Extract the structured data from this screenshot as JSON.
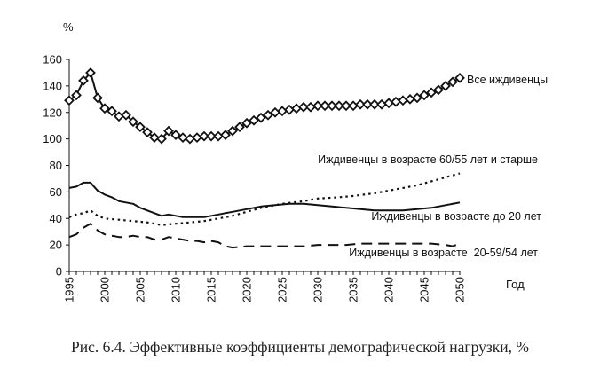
{
  "caption": "Рис. 6.4. Эффективные коэффициенты демографической нагрузки, %",
  "chart_data": {
    "type": "line",
    "ylabel": "%",
    "xlabel": "Год",
    "ylim": [
      0,
      160
    ],
    "yticks": [
      0,
      20,
      40,
      60,
      80,
      100,
      120,
      140,
      160
    ],
    "xlim": [
      1995,
      2050
    ],
    "xticks": [
      1995,
      2000,
      2005,
      2010,
      2015,
      2020,
      2025,
      2030,
      2035,
      2040,
      2045,
      2050
    ],
    "grid": false,
    "series": [
      {
        "name": "Все иждивенцы",
        "style": "solid-diamond-markers",
        "x": [
          1995,
          1996,
          1997,
          1998,
          1999,
          2000,
          2001,
          2002,
          2003,
          2004,
          2005,
          2006,
          2007,
          2008,
          2009,
          2010,
          2011,
          2012,
          2013,
          2014,
          2015,
          2016,
          2017,
          2018,
          2019,
          2020,
          2021,
          2022,
          2023,
          2024,
          2025,
          2026,
          2027,
          2028,
          2029,
          2030,
          2031,
          2032,
          2033,
          2034,
          2035,
          2036,
          2037,
          2038,
          2039,
          2040,
          2041,
          2042,
          2043,
          2044,
          2045,
          2046,
          2047,
          2048,
          2049,
          2050
        ],
        "values": [
          129,
          133,
          144,
          150,
          131,
          123,
          121,
          117,
          118,
          113,
          109,
          105,
          101,
          100,
          106,
          103,
          101,
          100,
          101,
          102,
          102,
          102,
          103,
          106,
          109,
          112,
          114,
          116,
          118,
          120,
          121,
          122,
          123,
          124,
          124,
          125,
          125,
          125,
          125,
          125,
          125,
          126,
          126,
          126,
          126,
          127,
          128,
          129,
          130,
          131,
          133,
          135,
          137,
          140,
          143,
          146
        ]
      },
      {
        "name": "Иждивенцы в возрасте 60/55 лет и старше",
        "style": "dotted",
        "x": [
          1995,
          1996,
          1997,
          1998,
          1999,
          2000,
          2002,
          2004,
          2006,
          2008,
          2010,
          2012,
          2014,
          2016,
          2018,
          2020,
          2022,
          2025,
          2028,
          2030,
          2033,
          2035,
          2038,
          2040,
          2042,
          2044,
          2046,
          2048,
          2050
        ],
        "values": [
          41,
          43,
          44,
          46,
          42,
          40,
          39,
          38,
          37,
          35,
          36,
          37,
          38,
          40,
          42,
          45,
          48,
          51,
          53,
          55,
          56,
          57,
          59,
          61,
          63,
          65,
          68,
          71,
          74
        ]
      },
      {
        "name": "Иждивенцы в возрасте до 20 лет",
        "style": "solid",
        "x": [
          1995,
          1996,
          1997,
          1998,
          1999,
          2000,
          2001,
          2002,
          2003,
          2004,
          2005,
          2006,
          2007,
          2008,
          2009,
          2010,
          2011,
          2012,
          2013,
          2014,
          2015,
          2016,
          2017,
          2018,
          2019,
          2020,
          2022,
          2024,
          2026,
          2028,
          2030,
          2032,
          2034,
          2036,
          2038,
          2040,
          2042,
          2044,
          2046,
          2048,
          2050
        ],
        "values": [
          63,
          64,
          67,
          67,
          61,
          58,
          56,
          53,
          52,
          51,
          48,
          46,
          44,
          42,
          43,
          42,
          41,
          41,
          41,
          41,
          42,
          43,
          44,
          45,
          46,
          47,
          49,
          50,
          51,
          51,
          50,
          49,
          48,
          47,
          46,
          46,
          46,
          47,
          48,
          50,
          52
        ]
      },
      {
        "name": "Иждивенцы в возрасте  20-59/54 лет",
        "style": "dashed",
        "x": [
          1995,
          1996,
          1997,
          1998,
          1999,
          2000,
          2001,
          2002,
          2003,
          2004,
          2005,
          2006,
          2007,
          2008,
          2009,
          2010,
          2011,
          2012,
          2013,
          2014,
          2015,
          2016,
          2017,
          2018,
          2020,
          2022,
          2024,
          2026,
          2028,
          2030,
          2032,
          2034,
          2036,
          2038,
          2040,
          2042,
          2044,
          2046,
          2048,
          2049,
          2050
        ],
        "values": [
          26,
          28,
          33,
          36,
          31,
          28,
          27,
          26,
          26,
          27,
          26,
          26,
          24,
          24,
          26,
          25,
          24,
          23,
          23,
          22,
          23,
          22,
          19,
          18,
          19,
          19,
          19,
          19,
          19,
          20,
          20,
          20,
          21,
          21,
          21,
          21,
          21,
          21,
          20,
          19,
          21
        ]
      }
    ]
  }
}
